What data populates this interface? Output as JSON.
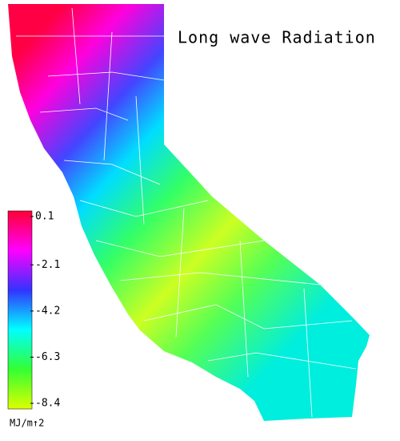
{
  "title": "Long wave Radiation",
  "colorbar": {
    "lim": [
      -8.4,
      0.1
    ],
    "ticks": [
      0.1,
      -2.1,
      -4.2,
      -6.3,
      -8.4
    ],
    "colors": [
      "#ff0033",
      "#ff00ff",
      "#3333ff",
      "#00ffff",
      "#33ff33",
      "#ddff00"
    ],
    "unit": "MJ/m↑2"
  }
}
